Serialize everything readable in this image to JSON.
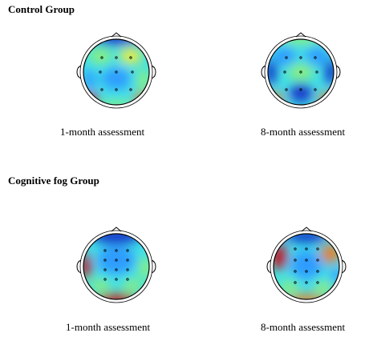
{
  "groups": [
    {
      "title": "Control Group",
      "maps": [
        {
          "caption": "1-month assessment"
        },
        {
          "caption": "8-month assessment"
        }
      ]
    },
    {
      "title": "Cognitive fog Group",
      "maps": [
        {
          "caption": "1-month assessment"
        },
        {
          "caption": "8-month assessment"
        }
      ]
    }
  ],
  "colors": {
    "low": "#1230c8",
    "mid_low": "#2f9bff",
    "mid": "#3fe0e8",
    "mid_high": "#8ef07a",
    "high_mid": "#f2ee3a",
    "high": "#f07a1a",
    "max": "#c8101e"
  }
}
